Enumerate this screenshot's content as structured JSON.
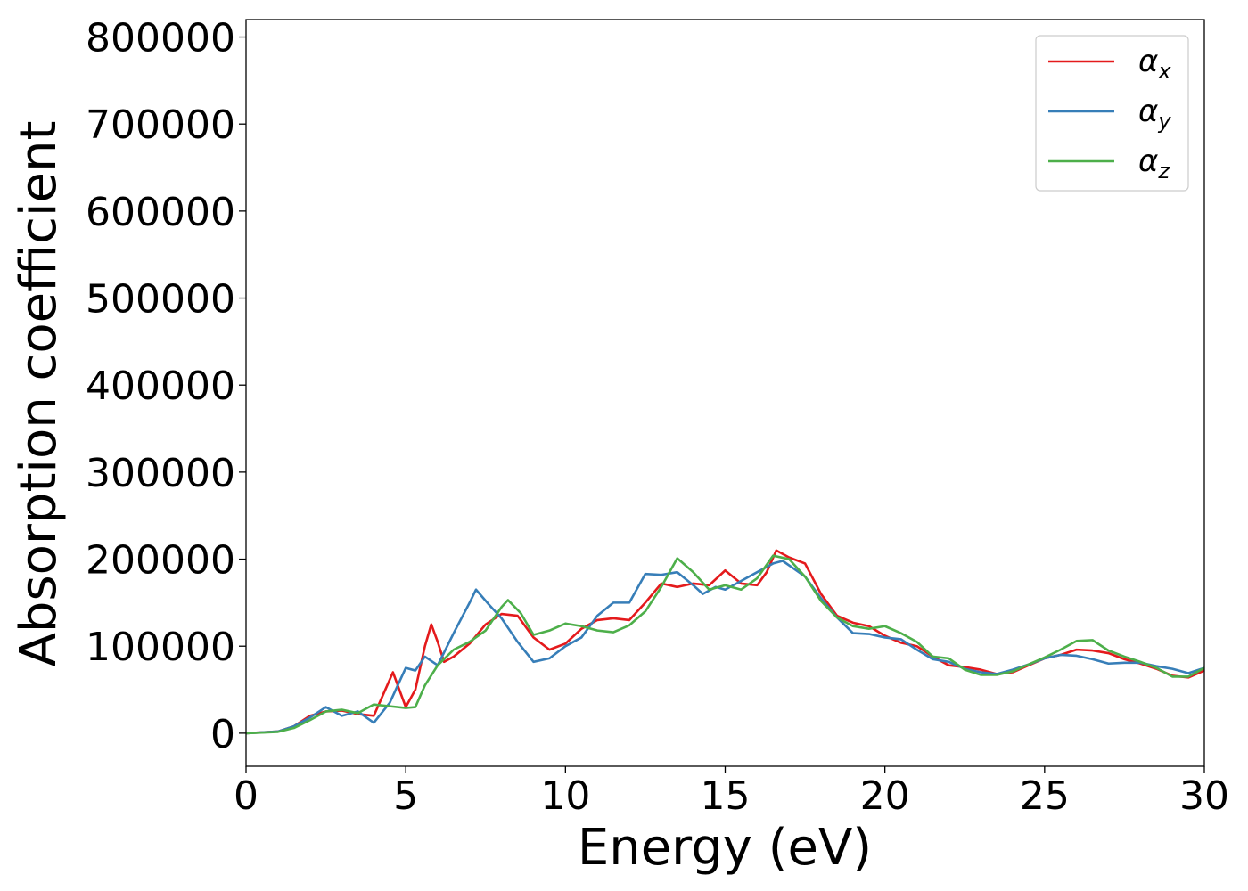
{
  "chart_data": {
    "type": "line",
    "title": "",
    "xlabel": "Energy (eV)",
    "ylabel": "Absorption coefficient",
    "xlim": [
      0,
      30
    ],
    "ylim": [
      -38000,
      820000
    ],
    "xticks": [
      0,
      5,
      10,
      15,
      20,
      25,
      30
    ],
    "yticks": [
      0,
      100000,
      200000,
      300000,
      400000,
      500000,
      600000,
      700000,
      800000
    ],
    "grid": false,
    "legend_position": "top-right",
    "series": [
      {
        "name": "α",
        "subscript": "x",
        "color": "#e41a1c",
        "points": [
          [
            0,
            0
          ],
          [
            1,
            2000
          ],
          [
            1.5,
            8000
          ],
          [
            2,
            20000
          ],
          [
            2.5,
            25000
          ],
          [
            3,
            26000
          ],
          [
            3.5,
            22000
          ],
          [
            4,
            20000
          ],
          [
            4.3,
            45000
          ],
          [
            4.6,
            70000
          ],
          [
            5,
            30000
          ],
          [
            5.3,
            50000
          ],
          [
            5.6,
            100000
          ],
          [
            5.8,
            125000
          ],
          [
            6,
            105000
          ],
          [
            6.2,
            82000
          ],
          [
            6.5,
            88000
          ],
          [
            7,
            103000
          ],
          [
            7.5,
            125000
          ],
          [
            8,
            137000
          ],
          [
            8.5,
            135000
          ],
          [
            9,
            110000
          ],
          [
            9.5,
            96000
          ],
          [
            10,
            103000
          ],
          [
            10.5,
            120000
          ],
          [
            11,
            130000
          ],
          [
            11.5,
            132000
          ],
          [
            12,
            130000
          ],
          [
            12.5,
            150000
          ],
          [
            13,
            172000
          ],
          [
            13.5,
            168000
          ],
          [
            14,
            172000
          ],
          [
            14.5,
            170000
          ],
          [
            15,
            187000
          ],
          [
            15.5,
            172000
          ],
          [
            16,
            170000
          ],
          [
            16.3,
            185000
          ],
          [
            16.6,
            210000
          ],
          [
            17,
            202000
          ],
          [
            17.5,
            195000
          ],
          [
            18,
            160000
          ],
          [
            18.5,
            135000
          ],
          [
            19,
            127000
          ],
          [
            19.5,
            123000
          ],
          [
            20,
            112000
          ],
          [
            20.5,
            104000
          ],
          [
            21,
            100000
          ],
          [
            21.5,
            88000
          ],
          [
            22,
            78000
          ],
          [
            22.5,
            76000
          ],
          [
            23,
            73000
          ],
          [
            23.5,
            68000
          ],
          [
            24,
            70000
          ],
          [
            24.5,
            78000
          ],
          [
            25,
            86000
          ],
          [
            25.5,
            90000
          ],
          [
            26,
            96000
          ],
          [
            26.5,
            95000
          ],
          [
            27,
            92000
          ],
          [
            27.5,
            85000
          ],
          [
            28,
            80000
          ],
          [
            28.5,
            74000
          ],
          [
            29,
            66000
          ],
          [
            29.5,
            64000
          ],
          [
            30,
            72000
          ]
        ]
      },
      {
        "name": "α",
        "subscript": "y",
        "color": "#377eb8",
        "points": [
          [
            0,
            0
          ],
          [
            1,
            2000
          ],
          [
            1.5,
            8000
          ],
          [
            2,
            18000
          ],
          [
            2.5,
            30000
          ],
          [
            3,
            20000
          ],
          [
            3.5,
            25000
          ],
          [
            4,
            12000
          ],
          [
            4.5,
            35000
          ],
          [
            5,
            75000
          ],
          [
            5.3,
            72000
          ],
          [
            5.6,
            88000
          ],
          [
            6,
            78000
          ],
          [
            6.5,
            115000
          ],
          [
            7,
            150000
          ],
          [
            7.2,
            165000
          ],
          [
            7.6,
            148000
          ],
          [
            8,
            132000
          ],
          [
            8.5,
            105000
          ],
          [
            9,
            82000
          ],
          [
            9.5,
            86000
          ],
          [
            10,
            100000
          ],
          [
            10.5,
            110000
          ],
          [
            11,
            135000
          ],
          [
            11.5,
            150000
          ],
          [
            12,
            150000
          ],
          [
            12.5,
            183000
          ],
          [
            13,
            182000
          ],
          [
            13.5,
            185000
          ],
          [
            14,
            170000
          ],
          [
            14.3,
            160000
          ],
          [
            14.7,
            168000
          ],
          [
            15,
            165000
          ],
          [
            15.5,
            175000
          ],
          [
            16,
            185000
          ],
          [
            16.5,
            195000
          ],
          [
            16.8,
            198000
          ],
          [
            17.5,
            180000
          ],
          [
            18,
            155000
          ],
          [
            18.5,
            133000
          ],
          [
            19,
            115000
          ],
          [
            19.5,
            114000
          ],
          [
            20,
            110000
          ],
          [
            20.5,
            108000
          ],
          [
            21,
            96000
          ],
          [
            21.5,
            85000
          ],
          [
            22,
            82000
          ],
          [
            22.5,
            74000
          ],
          [
            23,
            70000
          ],
          [
            23.5,
            68000
          ],
          [
            24,
            73000
          ],
          [
            24.5,
            79000
          ],
          [
            25,
            86000
          ],
          [
            25.5,
            90000
          ],
          [
            26,
            89000
          ],
          [
            26.5,
            85000
          ],
          [
            27,
            80000
          ],
          [
            27.5,
            81000
          ],
          [
            28,
            81000
          ],
          [
            28.5,
            77000
          ],
          [
            29,
            74000
          ],
          [
            29.5,
            69000
          ],
          [
            30,
            75000
          ]
        ]
      },
      {
        "name": "α",
        "subscript": "z",
        "color": "#4daf4a",
        "points": [
          [
            0,
            0
          ],
          [
            1,
            1500
          ],
          [
            1.5,
            6000
          ],
          [
            2,
            15000
          ],
          [
            2.5,
            25000
          ],
          [
            3,
            27000
          ],
          [
            3.5,
            23000
          ],
          [
            4,
            33000
          ],
          [
            4.5,
            31000
          ],
          [
            5,
            29000
          ],
          [
            5.3,
            30000
          ],
          [
            5.6,
            55000
          ],
          [
            6,
            78000
          ],
          [
            6.5,
            96000
          ],
          [
            7,
            105000
          ],
          [
            7.5,
            118000
          ],
          [
            8,
            145000
          ],
          [
            8.2,
            153000
          ],
          [
            8.6,
            138000
          ],
          [
            9,
            113000
          ],
          [
            9.5,
            118000
          ],
          [
            10,
            126000
          ],
          [
            10.5,
            123000
          ],
          [
            11,
            118000
          ],
          [
            11.5,
            116000
          ],
          [
            12,
            124000
          ],
          [
            12.5,
            140000
          ],
          [
            13,
            168000
          ],
          [
            13.5,
            201000
          ],
          [
            14,
            185000
          ],
          [
            14.5,
            165000
          ],
          [
            15,
            170000
          ],
          [
            15.5,
            165000
          ],
          [
            16,
            178000
          ],
          [
            16.5,
            204000
          ],
          [
            17,
            200000
          ],
          [
            17.5,
            180000
          ],
          [
            18,
            152000
          ],
          [
            18.5,
            133000
          ],
          [
            19,
            123000
          ],
          [
            19.5,
            120000
          ],
          [
            20,
            123000
          ],
          [
            20.5,
            115000
          ],
          [
            21,
            105000
          ],
          [
            21.5,
            88000
          ],
          [
            22,
            86000
          ],
          [
            22.5,
            73000
          ],
          [
            23,
            67000
          ],
          [
            23.5,
            67000
          ],
          [
            24,
            71000
          ],
          [
            24.5,
            79000
          ],
          [
            25,
            87000
          ],
          [
            25.5,
            96000
          ],
          [
            26,
            106000
          ],
          [
            26.5,
            107000
          ],
          [
            27,
            95000
          ],
          [
            27.5,
            88000
          ],
          [
            28,
            82000
          ],
          [
            28.5,
            75000
          ],
          [
            29,
            65000
          ],
          [
            29.5,
            65000
          ],
          [
            30,
            75000
          ]
        ]
      }
    ]
  }
}
